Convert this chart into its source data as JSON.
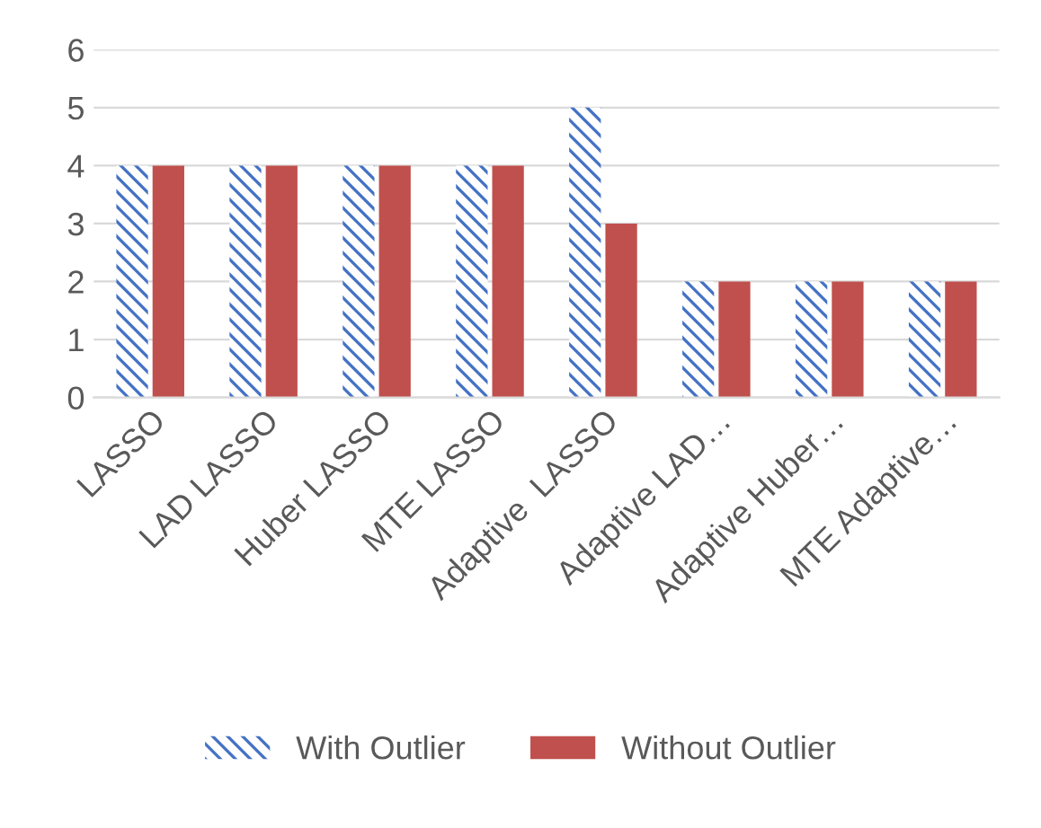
{
  "chart_data": {
    "type": "bar",
    "categories": [
      "LASSO",
      "LAD LASSO",
      "Huber LASSO",
      "MTE LASSO",
      "Adaptive  LASSO",
      "Adaptive LAD…",
      "Adaptive Huber…",
      "MTE Adaptive…"
    ],
    "series": [
      {
        "name": "With Outlier",
        "color": "#4472c4",
        "values": [
          4,
          4,
          4,
          4,
          5,
          2,
          2,
          2
        ]
      },
      {
        "name": "Without Outlier",
        "color": "#c0504d",
        "values": [
          4,
          4,
          4,
          4,
          3,
          2,
          2,
          2
        ]
      }
    ],
    "ylim": [
      0,
      6
    ],
    "yticks": [
      0,
      1,
      2,
      3,
      4,
      5,
      6
    ],
    "grid": "y",
    "legend": "bottom"
  }
}
